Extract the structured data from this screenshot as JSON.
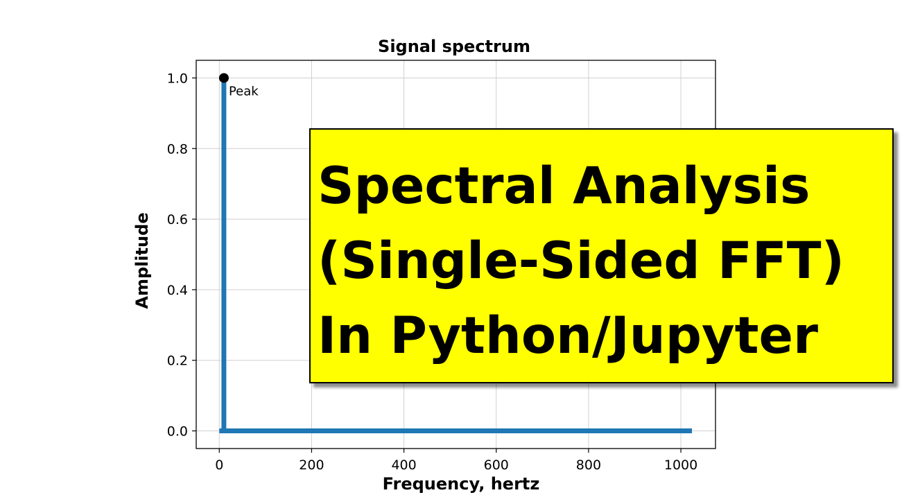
{
  "chart_data": {
    "type": "line",
    "title": "Signal spectrum",
    "xlabel": "Frequency, hertz",
    "ylabel": "Amplitude",
    "xlim": [
      -50,
      1075
    ],
    "ylim": [
      -0.05,
      1.05
    ],
    "xticks": [
      0,
      200,
      400,
      600,
      800,
      1000
    ],
    "yticks": [
      0.0,
      0.2,
      0.4,
      0.6,
      0.8,
      1.0
    ],
    "grid": true,
    "series": [
      {
        "color": "#1f77b4",
        "x": [
          0,
          10,
          10,
          10,
          20,
          1024
        ],
        "y": [
          0,
          0,
          1.0,
          0,
          0,
          0
        ]
      }
    ],
    "annotations": [
      {
        "text": "Peak",
        "x": 10,
        "y": 1.0
      }
    ]
  },
  "banner": {
    "lines": [
      "Spectral Analysis",
      "(Single-Sided FFT)",
      "In Python/Jupyter"
    ],
    "background": "#ffff00",
    "text_color": "#000000"
  }
}
